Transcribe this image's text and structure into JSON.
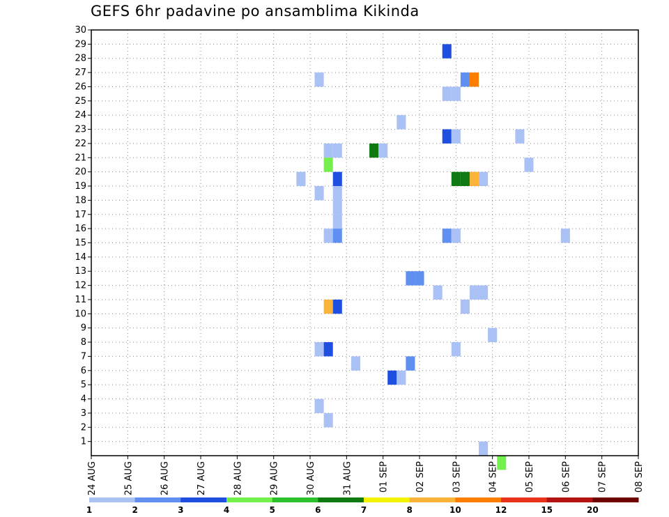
{
  "chart_data": {
    "type": "heatmap",
    "title": "GEFS 6hr padavine po ansamblima Kikinda",
    "xlabel": "",
    "ylabel": "",
    "y_ticks": [
      "1",
      "2",
      "3",
      "4",
      "5",
      "6",
      "7",
      "8",
      "9",
      "10",
      "11",
      "12",
      "13",
      "14",
      "15",
      "16",
      "17",
      "18",
      "19",
      "20",
      "21",
      "22",
      "23",
      "24",
      "25",
      "26",
      "27",
      "28",
      "29",
      "30"
    ],
    "ylim": [
      0,
      30
    ],
    "x_ticks": [
      "24 AUG",
      "25 AUG",
      "26 AUG",
      "27 AUG",
      "28 AUG",
      "29 AUG",
      "30 AUG",
      "31 AUG",
      "01 SEP",
      "02 SEP",
      "03 SEP",
      "04 SEP",
      "05 SEP",
      "06 SEP",
      "07 SEP",
      "08 SEP"
    ],
    "time_step_hours": 6,
    "grid": true,
    "colorbar": {
      "labels": [
        "1",
        "2",
        "3",
        "4",
        "5",
        "6",
        "7",
        "8",
        "10",
        "12",
        "15",
        "20"
      ],
      "colors": [
        "#a9c1f5",
        "#5f8ff0",
        "#1e4fe0",
        "#74f04c",
        "#2dc12d",
        "#0f7a12",
        "#f4f400",
        "#fbb33a",
        "#fb7e00",
        "#e8321a",
        "#b3140f",
        "#6e0000"
      ]
    },
    "cells": [
      {
        "day": 5.75,
        "member": 19.5,
        "color": "#a9c1f5"
      },
      {
        "day": 6.25,
        "member": 26.5,
        "color": "#a9c1f5"
      },
      {
        "day": 6.25,
        "member": 18.5,
        "color": "#a9c1f5"
      },
      {
        "day": 6.25,
        "member": 7.5,
        "color": "#a9c1f5"
      },
      {
        "day": 6.25,
        "member": 3.5,
        "color": "#a9c1f5"
      },
      {
        "day": 6.5,
        "member": 21.5,
        "color": "#a9c1f5"
      },
      {
        "day": 6.5,
        "member": 20.5,
        "color": "#74f04c"
      },
      {
        "day": 6.5,
        "member": 15.5,
        "color": "#a9c1f5"
      },
      {
        "day": 6.5,
        "member": 10.5,
        "color": "#fbb33a"
      },
      {
        "day": 6.5,
        "member": 7.5,
        "color": "#1e4fe0"
      },
      {
        "day": 6.5,
        "member": 2.5,
        "color": "#a9c1f5"
      },
      {
        "day": 6.75,
        "member": 21.5,
        "color": "#a9c1f5"
      },
      {
        "day": 6.75,
        "member": 19.5,
        "color": "#1e4fe0"
      },
      {
        "day": 6.75,
        "member": 18.5,
        "color": "#a9c1f5"
      },
      {
        "day": 6.75,
        "member": 17.5,
        "color": "#a9c1f5"
      },
      {
        "day": 6.75,
        "member": 16.5,
        "color": "#a9c1f5"
      },
      {
        "day": 6.75,
        "member": 15.5,
        "color": "#5f8ff0"
      },
      {
        "day": 6.75,
        "member": 10.5,
        "color": "#1e4fe0"
      },
      {
        "day": 7.25,
        "member": 6.5,
        "color": "#a9c1f5"
      },
      {
        "day": 7.75,
        "member": 21.5,
        "color": "#0f7a12"
      },
      {
        "day": 8.0,
        "member": 21.5,
        "color": "#a9c1f5"
      },
      {
        "day": 8.25,
        "member": 5.5,
        "color": "#1e4fe0"
      },
      {
        "day": 8.5,
        "member": 23.5,
        "color": "#a9c1f5"
      },
      {
        "day": 8.5,
        "member": 5.5,
        "color": "#a9c1f5"
      },
      {
        "day": 8.75,
        "member": 12.5,
        "color": "#5f8ff0"
      },
      {
        "day": 8.75,
        "member": 6.5,
        "color": "#5f8ff0"
      },
      {
        "day": 9.0,
        "member": 12.5,
        "color": "#5f8ff0"
      },
      {
        "day": 9.5,
        "member": 11.5,
        "color": "#a9c1f5"
      },
      {
        "day": 9.75,
        "member": 28.5,
        "color": "#1e4fe0"
      },
      {
        "day": 9.75,
        "member": 25.5,
        "color": "#a9c1f5"
      },
      {
        "day": 9.75,
        "member": 22.5,
        "color": "#1e4fe0"
      },
      {
        "day": 9.75,
        "member": 15.5,
        "color": "#5f8ff0"
      },
      {
        "day": 10.0,
        "member": 25.5,
        "color": "#a9c1f5"
      },
      {
        "day": 10.0,
        "member": 22.5,
        "color": "#a9c1f5"
      },
      {
        "day": 10.0,
        "member": 15.5,
        "color": "#a9c1f5"
      },
      {
        "day": 10.0,
        "member": 7.5,
        "color": "#a9c1f5"
      },
      {
        "day": 10.0,
        "member": 19.5,
        "color": "#0f7a12"
      },
      {
        "day": 10.25,
        "member": 26.5,
        "color": "#5f8ff0"
      },
      {
        "day": 10.25,
        "member": 19.5,
        "color": "#0f7a12"
      },
      {
        "day": 10.25,
        "member": 10.5,
        "color": "#a9c1f5"
      },
      {
        "day": 10.5,
        "member": 26.5,
        "color": "#fb7e00"
      },
      {
        "day": 10.5,
        "member": 19.5,
        "color": "#fbb33a"
      },
      {
        "day": 10.5,
        "member": 11.5,
        "color": "#a9c1f5"
      },
      {
        "day": 10.75,
        "member": 19.5,
        "color": "#a9c1f5"
      },
      {
        "day": 10.75,
        "member": 11.5,
        "color": "#a9c1f5"
      },
      {
        "day": 10.75,
        "member": 0.5,
        "color": "#a9c1f5"
      },
      {
        "day": 11.0,
        "member": 8.5,
        "color": "#a9c1f5"
      },
      {
        "day": 11.25,
        "member": -0.5,
        "color": "#74f04c"
      },
      {
        "day": 11.75,
        "member": 22.5,
        "color": "#a9c1f5"
      },
      {
        "day": 12.0,
        "member": 20.5,
        "color": "#a9c1f5"
      },
      {
        "day": 13.0,
        "member": 15.5,
        "color": "#a9c1f5"
      }
    ]
  }
}
